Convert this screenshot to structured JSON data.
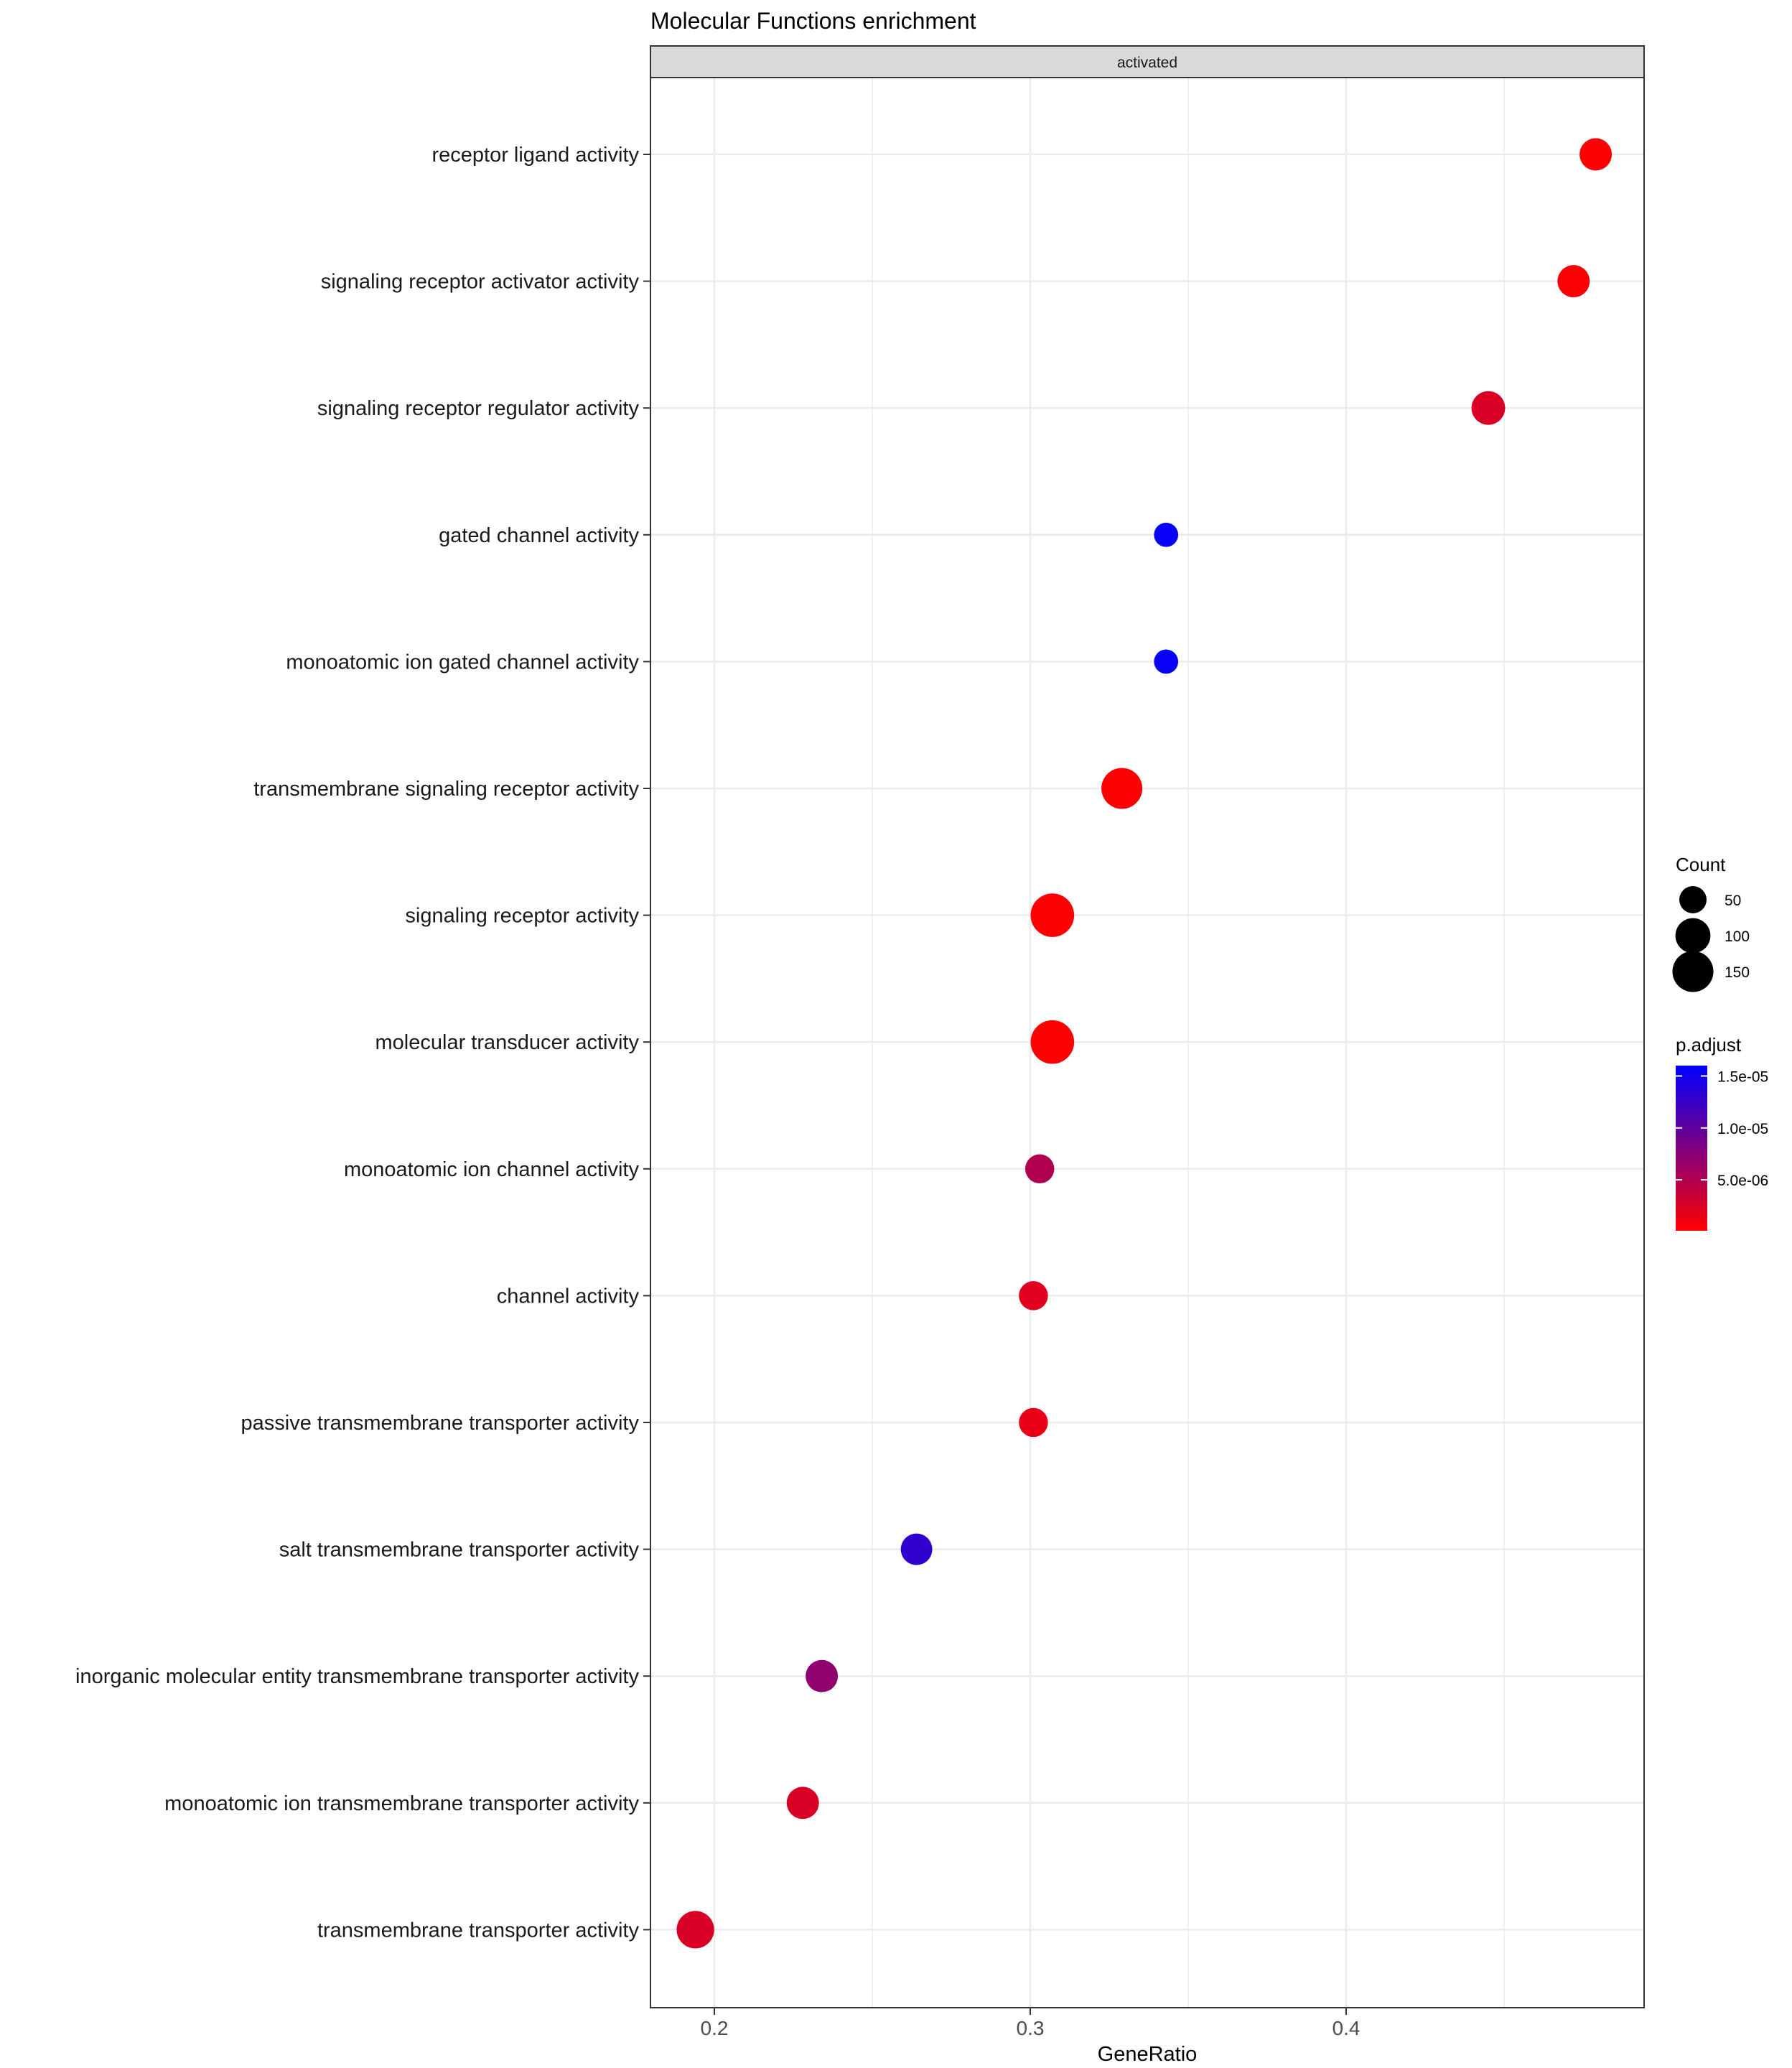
{
  "chart_data": {
    "type": "scatter",
    "title": "Molecular Functions enrichment",
    "facet": "activated",
    "xlabel": "GeneRatio",
    "ylabel": "",
    "xlim": [
      0.179,
      0.494
    ],
    "xticks": [
      0.2,
      0.3,
      0.4
    ],
    "xtick_labels": [
      "0.2",
      "0.3",
      "0.4"
    ],
    "grid": true,
    "categories": [
      "receptor ligand activity",
      "signaling receptor activator activity",
      "signaling receptor regulator activity",
      "gated channel activity",
      "monoatomic ion gated channel activity",
      "transmembrane signaling receptor activity",
      "signaling receptor activity",
      "molecular transducer activity",
      "monoatomic ion channel activity",
      "channel activity",
      "passive transmembrane transporter activity",
      "salt transmembrane transporter activity",
      "inorganic molecular entity transmembrane transporter activity",
      "monoatomic ion transmembrane transporter activity",
      "transmembrane transporter activity"
    ],
    "points": [
      {
        "category": "receptor ligand activity",
        "gene_ratio": 0.479,
        "count": 80,
        "p_adjust": 2e-07
      },
      {
        "category": "signaling receptor activator activity",
        "gene_ratio": 0.472,
        "count": 80,
        "p_adjust": 3e-07
      },
      {
        "category": "signaling receptor regulator activity",
        "gene_ratio": 0.445,
        "count": 90,
        "p_adjust": 2.5e-06
      },
      {
        "category": "gated channel activity",
        "gene_ratio": 0.343,
        "count": 35,
        "p_adjust": 1.55e-05
      },
      {
        "category": "monoatomic ion gated channel activity",
        "gene_ratio": 0.343,
        "count": 35,
        "p_adjust": 1.55e-05
      },
      {
        "category": "transmembrane signaling receptor activity",
        "gene_ratio": 0.329,
        "count": 150,
        "p_adjust": 2e-07
      },
      {
        "category": "signaling receptor activity",
        "gene_ratio": 0.307,
        "count": 175,
        "p_adjust": 2e-07
      },
      {
        "category": "molecular transducer activity",
        "gene_ratio": 0.307,
        "count": 175,
        "p_adjust": 2e-07
      },
      {
        "category": "monoatomic ion channel activity",
        "gene_ratio": 0.303,
        "count": 60,
        "p_adjust": 5e-06
      },
      {
        "category": "channel activity",
        "gene_ratio": 0.301,
        "count": 60,
        "p_adjust": 2e-06
      },
      {
        "category": "passive transmembrane transporter activity",
        "gene_ratio": 0.301,
        "count": 60,
        "p_adjust": 1.5e-06
      },
      {
        "category": "salt transmembrane transporter activity",
        "gene_ratio": 0.264,
        "count": 75,
        "p_adjust": 1.3e-05
      },
      {
        "category": "inorganic molecular entity transmembrane transporter activity",
        "gene_ratio": 0.234,
        "count": 80,
        "p_adjust": 7e-06
      },
      {
        "category": "monoatomic ion transmembrane transporter activity",
        "gene_ratio": 0.228,
        "count": 80,
        "p_adjust": 2.5e-06
      },
      {
        "category": "transmembrane transporter activity",
        "gene_ratio": 0.194,
        "count": 120,
        "p_adjust": 2.5e-06
      }
    ],
    "size_legend": {
      "title": "Count",
      "values": [
        50,
        100,
        150
      ],
      "labels": [
        "50",
        "100",
        "150"
      ]
    },
    "color_legend": {
      "title": "p.adjust",
      "range": [
        1e-07,
        1.6e-05
      ],
      "breaks": [
        1.5e-05,
        1e-05,
        5e-06
      ],
      "labels": [
        "1.5e-05",
        "1.0e-05",
        "5.0e-06"
      ],
      "low_color": "#ff0000",
      "high_color": "#0000ff"
    },
    "legend_position": "right"
  }
}
